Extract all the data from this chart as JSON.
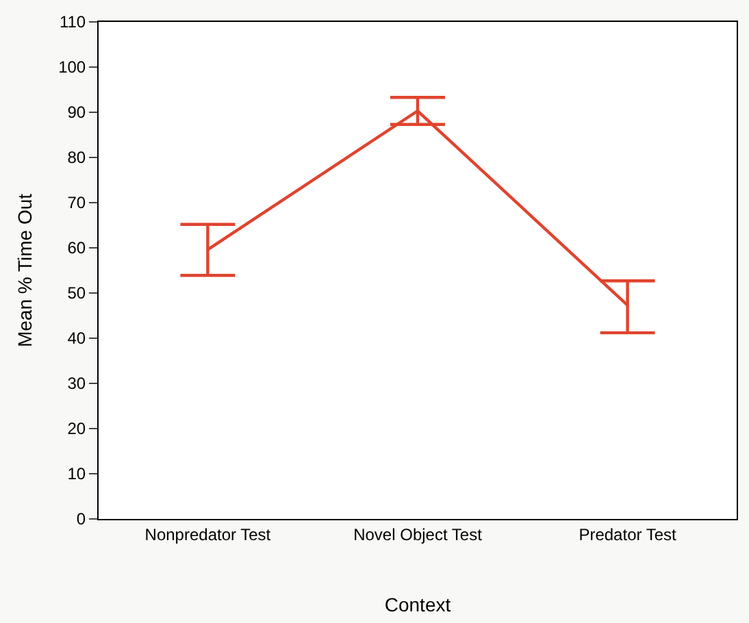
{
  "chart_data": {
    "type": "line",
    "xlabel": "Context",
    "ylabel": "Mean % Time Out",
    "categories": [
      "Nonpredator Test",
      "Novel Object Test",
      "Predator Test"
    ],
    "series": [
      {
        "color": "#e0442e",
        "values": [
          59.6,
          90.3,
          47.3
        ],
        "errors": [
          [
            53.9,
            65.2
          ],
          [
            87.3,
            93.3
          ],
          [
            41.2,
            52.7
          ]
        ]
      }
    ],
    "ylim": [
      0,
      110
    ],
    "yticks": [
      0,
      10,
      20,
      30,
      40,
      50,
      60,
      70,
      80,
      90,
      100,
      110
    ],
    "marker": "none",
    "line_style": "solid"
  }
}
